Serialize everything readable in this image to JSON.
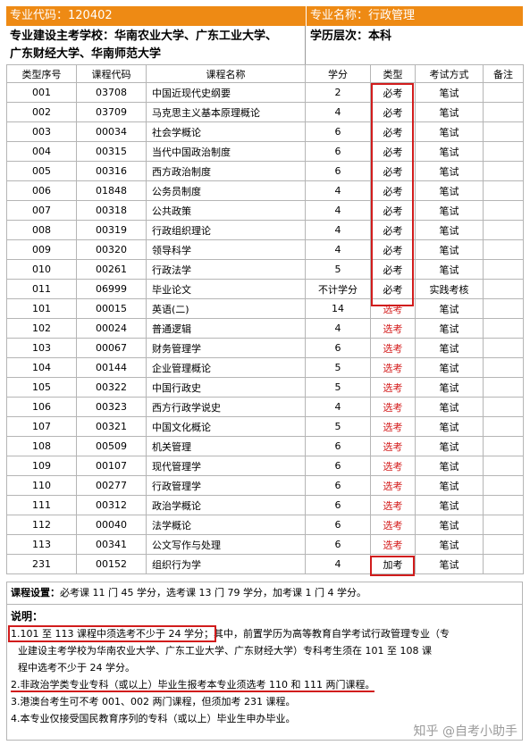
{
  "header": {
    "major_code_label": "专业代码：120402",
    "major_name_label": "专业名称：行政管理",
    "schools_line1": "专业建设主考学校：华南农业大学、广东工业大学、",
    "schools_line2": "广东财经大学、华南师范大学",
    "level_label": "学历层次：本科"
  },
  "columns": [
    "类型序号",
    "课程代码",
    "课程名称",
    "学分",
    "类型",
    "考试方式",
    "备注"
  ],
  "rows": [
    {
      "seq": "001",
      "code": "03708",
      "name": "中国近现代史纲要",
      "credit": "2",
      "type": "必考",
      "exam": "笔试",
      "note": ""
    },
    {
      "seq": "002",
      "code": "03709",
      "name": "马克思主义基本原理概论",
      "credit": "4",
      "type": "必考",
      "exam": "笔试",
      "note": ""
    },
    {
      "seq": "003",
      "code": "00034",
      "name": "社会学概论",
      "credit": "6",
      "type": "必考",
      "exam": "笔试",
      "note": ""
    },
    {
      "seq": "004",
      "code": "00315",
      "name": "当代中国政治制度",
      "credit": "6",
      "type": "必考",
      "exam": "笔试",
      "note": ""
    },
    {
      "seq": "005",
      "code": "00316",
      "name": "西方政治制度",
      "credit": "6",
      "type": "必考",
      "exam": "笔试",
      "note": ""
    },
    {
      "seq": "006",
      "code": "01848",
      "name": "公务员制度",
      "credit": "4",
      "type": "必考",
      "exam": "笔试",
      "note": ""
    },
    {
      "seq": "007",
      "code": "00318",
      "name": "公共政策",
      "credit": "4",
      "type": "必考",
      "exam": "笔试",
      "note": ""
    },
    {
      "seq": "008",
      "code": "00319",
      "name": "行政组织理论",
      "credit": "4",
      "type": "必考",
      "exam": "笔试",
      "note": ""
    },
    {
      "seq": "009",
      "code": "00320",
      "name": "领导科学",
      "credit": "4",
      "type": "必考",
      "exam": "笔试",
      "note": ""
    },
    {
      "seq": "010",
      "code": "00261",
      "name": "行政法学",
      "credit": "5",
      "type": "必考",
      "exam": "笔试",
      "note": ""
    },
    {
      "seq": "011",
      "code": "06999",
      "name": "毕业论文",
      "credit": "不计学分",
      "type": "必考",
      "exam": "实践考核",
      "note": ""
    },
    {
      "seq": "101",
      "code": "00015",
      "name": "英语(二)",
      "credit": "14",
      "type": "选考",
      "exam": "笔试",
      "note": ""
    },
    {
      "seq": "102",
      "code": "00024",
      "name": "普通逻辑",
      "credit": "4",
      "type": "选考",
      "exam": "笔试",
      "note": ""
    },
    {
      "seq": "103",
      "code": "00067",
      "name": "财务管理学",
      "credit": "6",
      "type": "选考",
      "exam": "笔试",
      "note": ""
    },
    {
      "seq": "104",
      "code": "00144",
      "name": "企业管理概论",
      "credit": "5",
      "type": "选考",
      "exam": "笔试",
      "note": ""
    },
    {
      "seq": "105",
      "code": "00322",
      "name": "中国行政史",
      "credit": "5",
      "type": "选考",
      "exam": "笔试",
      "note": ""
    },
    {
      "seq": "106",
      "code": "00323",
      "name": "西方行政学说史",
      "credit": "4",
      "type": "选考",
      "exam": "笔试",
      "note": ""
    },
    {
      "seq": "107",
      "code": "00321",
      "name": "中国文化概论",
      "credit": "5",
      "type": "选考",
      "exam": "笔试",
      "note": ""
    },
    {
      "seq": "108",
      "code": "00509",
      "name": "机关管理",
      "credit": "6",
      "type": "选考",
      "exam": "笔试",
      "note": ""
    },
    {
      "seq": "109",
      "code": "00107",
      "name": "现代管理学",
      "credit": "6",
      "type": "选考",
      "exam": "笔试",
      "note": ""
    },
    {
      "seq": "110",
      "code": "00277",
      "name": "行政管理学",
      "credit": "6",
      "type": "选考",
      "exam": "笔试",
      "note": ""
    },
    {
      "seq": "111",
      "code": "00312",
      "name": "政治学概论",
      "credit": "6",
      "type": "选考",
      "exam": "笔试",
      "note": ""
    },
    {
      "seq": "112",
      "code": "00040",
      "name": "法学概论",
      "credit": "6",
      "type": "选考",
      "exam": "笔试",
      "note": ""
    },
    {
      "seq": "113",
      "code": "00341",
      "name": "公文写作与处理",
      "credit": "6",
      "type": "选考",
      "exam": "笔试",
      "note": ""
    },
    {
      "seq": "231",
      "code": "00152",
      "name": "组织行为学",
      "credit": "4",
      "type": "加考",
      "exam": "笔试",
      "note": ""
    }
  ],
  "summary": {
    "label": "课程设置：",
    "text": "必考课 11 门 45 学分，选考课 13 门 79 学分，加考课 1 门 4 学分。"
  },
  "notes": {
    "title": "说明：",
    "n1_highlight": "1.101 至 113 课程中须选考不少于 24 学分；",
    "n1_rest": "其中，前置学历为高等教育自学考试行政管理专业（专",
    "n1_line2": "业建设主考学校为华南农业大学、广东工业大学、广东财经大学）专科考生须在 101 至 108 课",
    "n1_line3": "程中选考不少于 24 学分。",
    "n2": "2.非政治学类专业专科（或以上）毕业生报考本专业须选考 110 和 111 两门课程。",
    "n3": "3.港澳台考生可不考 001、002 两门课程，但须加考 231 课程。",
    "n4": "4.本专业仅接受国民教育序列的专科（或以上）毕业生申办毕业。"
  },
  "watermark": "知乎 @自考小助手",
  "colors": {
    "header_orange": "#ee8a14",
    "elective_red": "#d41b1b",
    "highlight_box": "#d11c1c"
  }
}
